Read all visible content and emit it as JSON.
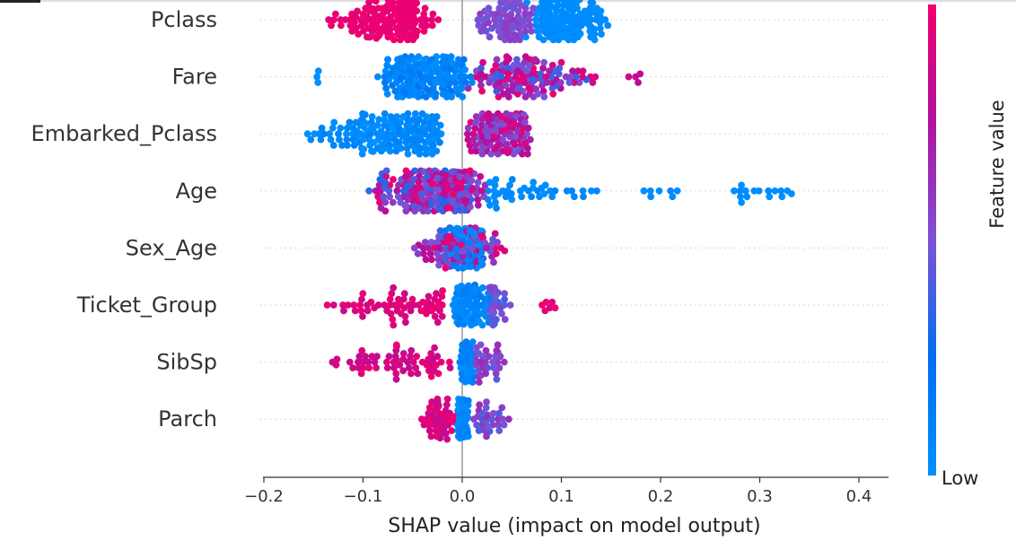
{
  "chart_data": {
    "type": "scatter",
    "subtype": "shap-beeswarm",
    "xlabel": "SHAP value (impact on model output)",
    "xlim": [
      -0.2,
      0.43
    ],
    "xticks": [
      "−0.2",
      "−0.1",
      "0.0",
      "0.1",
      "0.2",
      "0.3",
      "0.4"
    ],
    "xtick_values": [
      -0.2,
      -0.1,
      0.0,
      0.1,
      0.2,
      0.3,
      0.4
    ],
    "grid": "dotted horizontal per feature",
    "colorbar": {
      "label": "Feature value",
      "low_label": "Low",
      "colors": [
        "#0090ff",
        "#006ef0",
        "#7d52d6",
        "#b0109e",
        "#f0006f"
      ]
    },
    "features": [
      {
        "name": "Pclass",
        "clusters": [
          {
            "range": [
              -0.145,
              -0.02
            ],
            "mode": -0.05,
            "n": 150,
            "value": [
              0.95,
              1.0
            ]
          },
          {
            "range": [
              0.01,
              0.075
            ],
            "mode": 0.05,
            "n": 70,
            "value": [
              0.45,
              0.6
            ]
          },
          {
            "range": [
              0.06,
              0.155
            ],
            "mode": 0.09,
            "n": 120,
            "value": [
              0.0,
              0.05
            ]
          }
        ]
      },
      {
        "name": "Fare",
        "clusters": [
          {
            "range": [
              -0.148,
              -0.142
            ],
            "mode": -0.145,
            "n": 3,
            "value": [
              0.0,
              0.05
            ]
          },
          {
            "range": [
              -0.09,
              0.015
            ],
            "mode": -0.045,
            "n": 170,
            "value": [
              0.0,
              0.2
            ]
          },
          {
            "range": [
              0.0,
              0.14
            ],
            "mode": 0.05,
            "n": 120,
            "value": [
              0.3,
              1.0
            ]
          },
          {
            "range": [
              0.163,
              0.183
            ],
            "mode": 0.175,
            "n": 4,
            "value": [
              0.8,
              0.95
            ]
          }
        ]
      },
      {
        "name": "Embarked_Pclass",
        "clusters": [
          {
            "range": [
              -0.165,
              -0.015
            ],
            "mode": -0.04,
            "n": 150,
            "value": [
              0.0,
              0.1
            ]
          },
          {
            "range": [
              0.0,
              0.072
            ],
            "mode": 0.04,
            "n": 120,
            "value": [
              0.45,
              1.0
            ]
          }
        ]
      },
      {
        "name": "Age",
        "clusters": [
          {
            "range": [
              -0.095,
              0.025
            ],
            "mode": -0.01,
            "n": 220,
            "value": [
              0.3,
              1.0
            ]
          },
          {
            "range": [
              0.02,
              0.15
            ],
            "mode": 0.03,
            "n": 40,
            "value": [
              0.0,
              0.08
            ]
          },
          {
            "range": [
              0.17,
              0.235
            ],
            "mode": 0.2,
            "n": 7,
            "value": [
              0.0,
              0.05
            ]
          },
          {
            "range": [
              0.25,
              0.34
            ],
            "mode": 0.31,
            "n": 16,
            "value": [
              0.0,
              0.05
            ]
          }
        ]
      },
      {
        "name": "Sex_Age",
        "clusters": [
          {
            "range": [
              -0.05,
              0.05
            ],
            "mode": 0.0,
            "n": 120,
            "value": [
              0.35,
              1.0
            ]
          },
          {
            "range": [
              -0.02,
              0.025
            ],
            "mode": 0.0,
            "n": 60,
            "value": [
              0.0,
              0.2
            ]
          }
        ]
      },
      {
        "name": "Ticket_Group",
        "clusters": [
          {
            "range": [
              -0.145,
              -0.015
            ],
            "mode": -0.03,
            "n": 60,
            "value": [
              0.85,
              1.0
            ]
          },
          {
            "range": [
              -0.01,
              0.03
            ],
            "mode": 0.0,
            "n": 90,
            "value": [
              0.0,
              0.15
            ]
          },
          {
            "range": [
              0.02,
              0.065
            ],
            "mode": 0.03,
            "n": 30,
            "value": [
              0.35,
              0.6
            ]
          },
          {
            "range": [
              0.078,
              0.095
            ],
            "mode": 0.085,
            "n": 6,
            "value": [
              0.9,
              1.0
            ]
          }
        ]
      },
      {
        "name": "SibSp",
        "clusters": [
          {
            "range": [
              -0.145,
              -0.01
            ],
            "mode": -0.03,
            "n": 60,
            "value": [
              0.8,
              1.0
            ]
          },
          {
            "range": [
              -0.003,
              0.012
            ],
            "mode": 0.004,
            "n": 80,
            "value": [
              0.0,
              0.15
            ]
          },
          {
            "range": [
              0.01,
              0.05
            ],
            "mode": 0.02,
            "n": 30,
            "value": [
              0.35,
              0.65
            ]
          }
        ]
      },
      {
        "name": "Parch",
        "clusters": [
          {
            "range": [
              -0.045,
              -0.005
            ],
            "mode": -0.02,
            "n": 45,
            "value": [
              0.8,
              1.0
            ]
          },
          {
            "range": [
              -0.006,
              0.008
            ],
            "mode": 0.0,
            "n": 90,
            "value": [
              0.0,
              0.12
            ]
          },
          {
            "range": [
              0.01,
              0.048
            ],
            "mode": 0.02,
            "n": 30,
            "value": [
              0.35,
              0.65
            ]
          }
        ]
      }
    ]
  }
}
